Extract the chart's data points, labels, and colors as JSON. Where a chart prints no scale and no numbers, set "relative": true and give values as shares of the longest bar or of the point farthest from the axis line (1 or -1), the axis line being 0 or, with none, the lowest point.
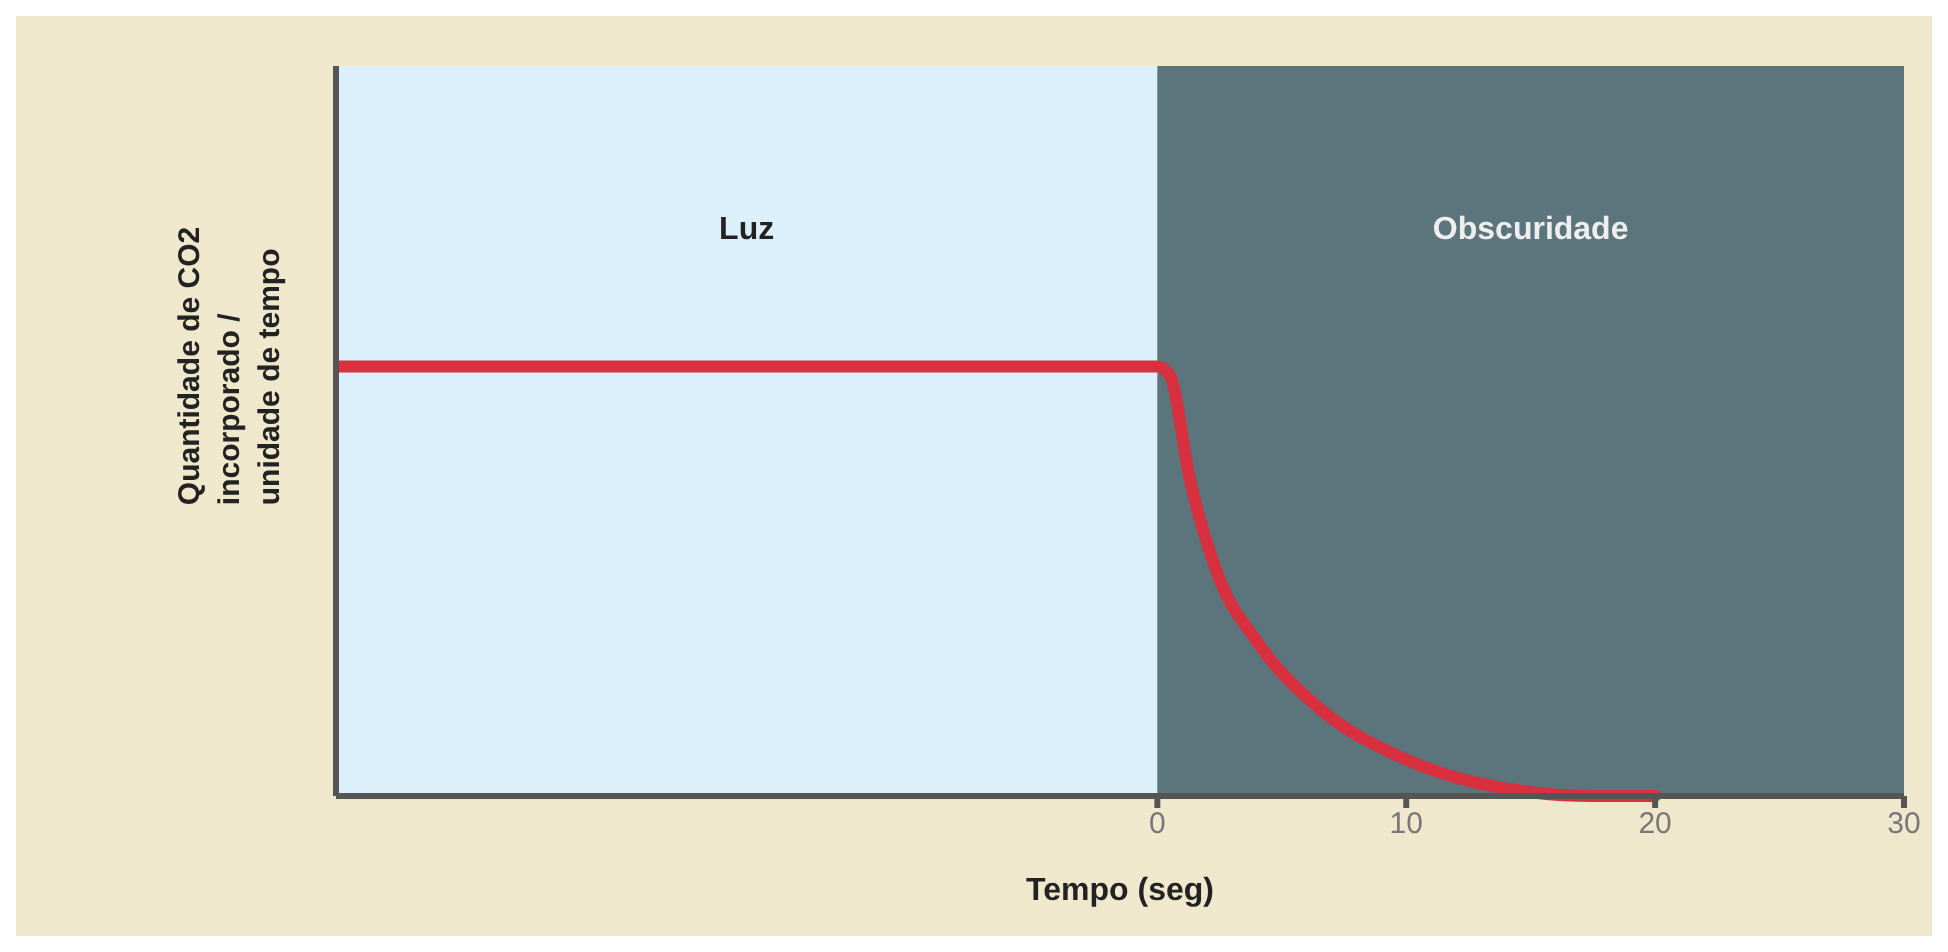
{
  "chart_data": {
    "type": "line",
    "relative": true,
    "xlabel": "Tempo (seg)",
    "ylabel": "Quantidade de CO2 incorporado / unidade de tempo",
    "xlim": [
      -33,
      30
    ],
    "xticks": [
      0,
      10,
      20,
      30
    ],
    "x": [
      -33,
      0,
      0.5,
      1.3,
      2.4,
      4,
      6.6,
      9.8,
      12.9,
      17.5,
      20
    ],
    "series": [
      {
        "color": "#d8303f",
        "values": [
          1,
          1,
          0.98,
          0.74,
          0.52,
          0.36,
          0.2,
          0.09,
          0.03,
          0,
          0
        ]
      }
    ],
    "bands": [
      {
        "axis": "x",
        "from": -33,
        "to": 0,
        "label": "Luz",
        "color": "#dcf0fb"
      },
      {
        "axis": "x",
        "from": 0,
        "to": 30,
        "label": "Obscuridade",
        "color": "#5c747c"
      }
    ],
    "grid": false,
    "line_style": "solid",
    "marker": "none"
  }
}
